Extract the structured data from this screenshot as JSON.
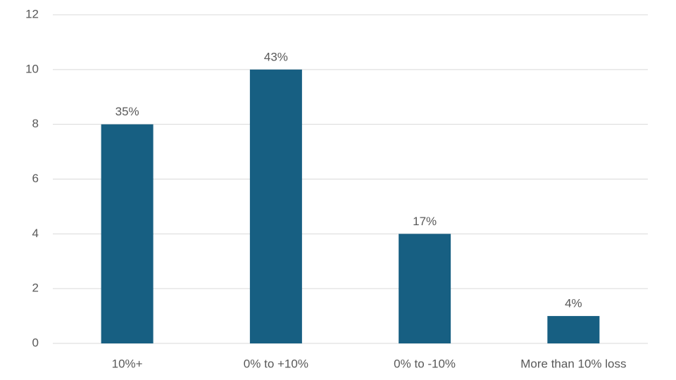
{
  "chart_data": {
    "type": "bar",
    "categories": [
      "10%+",
      "0% to +10%",
      "0% to -10%",
      "More than 10% loss"
    ],
    "values": [
      8,
      10,
      4,
      1
    ],
    "share_labels": [
      "35%",
      "43%",
      "17%",
      "4%"
    ],
    "color": "#175f82",
    "ylim": [
      0,
      12
    ],
    "yticks": [
      0,
      2,
      4,
      6,
      8,
      10,
      12
    ],
    "grid": true
  }
}
